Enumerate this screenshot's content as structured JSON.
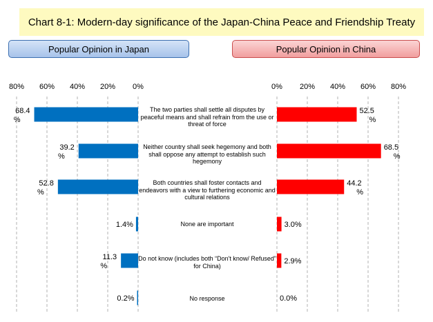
{
  "title": "Chart 8-1: Modern-day significance of the Japan-China Peace and Friendship Treaty",
  "headers": {
    "japan": "Popular Opinion in Japan",
    "china": "Popular Opinion in China"
  },
  "chart_data": {
    "type": "bar",
    "orientation": "horizontal",
    "categories": [
      "The two parties shall settle all disputes by peaceful means and shall refrain from the use or threat of force",
      "Neither country shall seek hegemony and both shall oppose any attempt to establish such hegemony",
      "Both countries shall foster contacts and endeavors with a view to furthering economic and cultural relations",
      "None are important",
      "Do not know (includes both “Don't know/ Refused” for China)",
      "No response"
    ],
    "series": [
      {
        "name": "Popular Opinion in Japan",
        "color": "#0070c0",
        "values": [
          68.4,
          39.2,
          52.8,
          1.4,
          11.3,
          0.2
        ],
        "labels": [
          "68.4 %",
          "39.2 %",
          "52.8 %",
          "1.4%",
          "11.3 %",
          "0.2%"
        ]
      },
      {
        "name": "Popular Opinion in China",
        "color": "#ff0000",
        "values": [
          52.5,
          68.5,
          44.2,
          3.0,
          2.9,
          0.0
        ],
        "labels": [
          "52.5 %",
          "68.5 %",
          "44.2 %",
          "3.0%",
          "2.9%",
          "0.0%"
        ]
      }
    ],
    "xlim": [
      0,
      80
    ],
    "ticks": [
      "0%",
      "20%",
      "40%",
      "60%",
      "80%"
    ],
    "grid": true
  }
}
